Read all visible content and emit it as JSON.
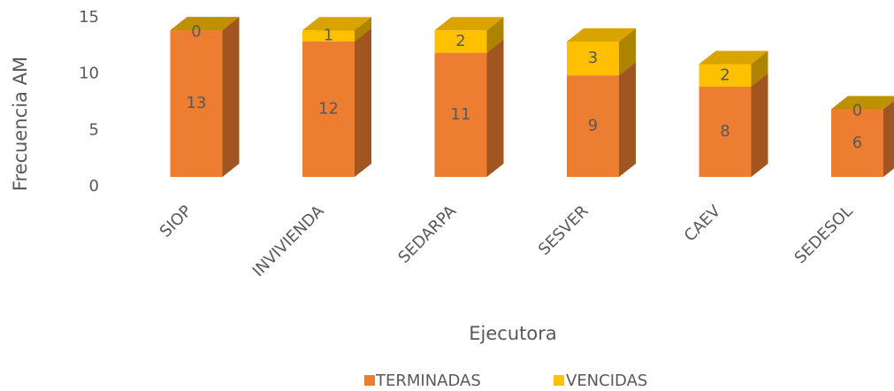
{
  "chart_data": {
    "type": "bar3d_stacked",
    "categories": [
      "SIOP",
      "INVIVIENDA",
      "SEDARPA",
      "SESVER",
      "CAEV",
      "SEDESOL"
    ],
    "series": [
      {
        "name": "TERMINADAS",
        "color": "#ED7D31",
        "values": [
          13,
          12,
          11,
          9,
          8,
          6
        ]
      },
      {
        "name": "VENCIDAS",
        "color": "#FFC000",
        "values": [
          0,
          1,
          2,
          3,
          2,
          0
        ]
      }
    ],
    "ylim": [
      0,
      15
    ],
    "yticks": [
      0,
      5,
      10,
      15
    ],
    "xlabel": "Ejecutora",
    "ylabel": "Frecuencia AM",
    "legend": "bottom"
  }
}
